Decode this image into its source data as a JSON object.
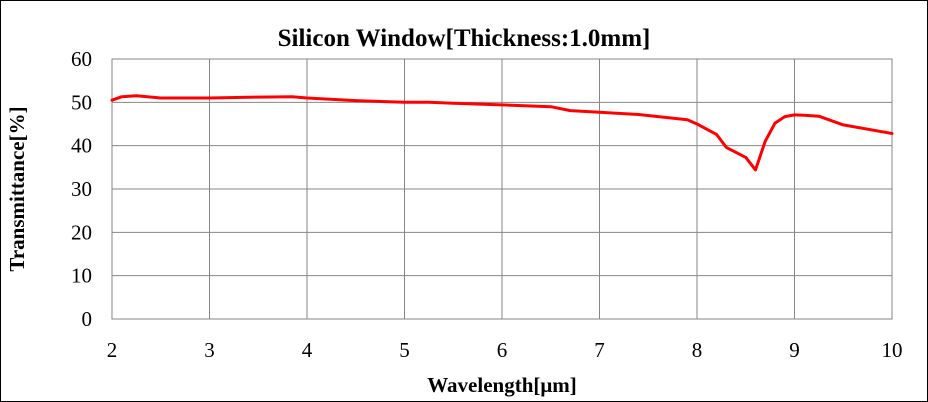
{
  "chart_data": {
    "type": "line",
    "title": "Silicon Window[Thickness:1.0mm]",
    "xlabel": "Wavelength[μm]",
    "ylabel": "Transmittance[%]",
    "xlim": [
      2,
      10
    ],
    "ylim": [
      0,
      60
    ],
    "x_ticks": [
      "2",
      "3",
      "4",
      "5",
      "6",
      "7",
      "8",
      "9",
      "10"
    ],
    "y_ticks": [
      "0",
      "10",
      "20",
      "30",
      "40",
      "50",
      "60"
    ],
    "grid": true,
    "legend": "none",
    "series": [
      {
        "color": "#ff0000",
        "x": [
          2.0,
          2.1,
          2.25,
          2.5,
          3.0,
          3.5,
          3.85,
          4.0,
          4.5,
          5.0,
          5.25,
          5.5,
          6.0,
          6.5,
          6.7,
          7.0,
          7.4,
          7.9,
          8.0,
          8.2,
          8.3,
          8.5,
          8.6,
          8.7,
          8.8,
          8.9,
          9.0,
          9.1,
          9.25,
          9.5,
          10.0
        ],
        "y": [
          50.5,
          51.3,
          51.5,
          51.0,
          51.0,
          51.2,
          51.3,
          51.0,
          50.4,
          50.0,
          50.0,
          49.8,
          49.4,
          49.0,
          48.1,
          47.7,
          47.2,
          46.0,
          45.0,
          42.6,
          39.6,
          37.3,
          34.4,
          41.0,
          45.2,
          46.7,
          47.1,
          47.0,
          46.8,
          44.8,
          42.8
        ]
      }
    ]
  }
}
